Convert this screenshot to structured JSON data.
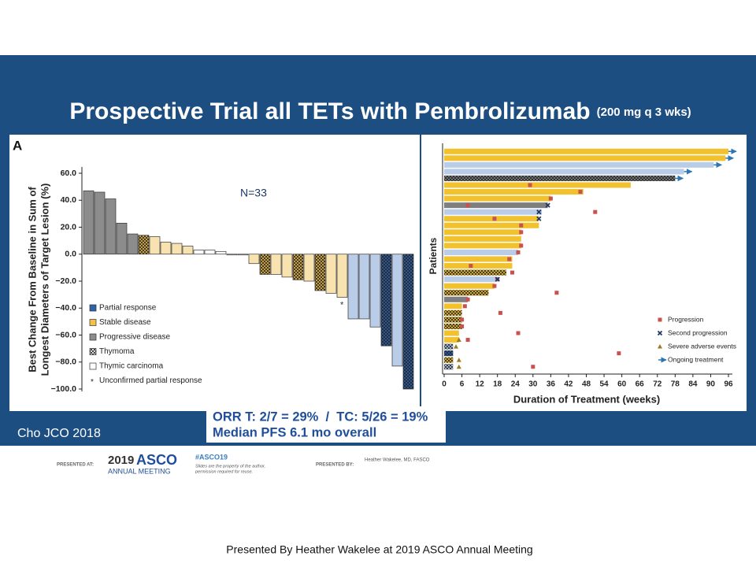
{
  "slide": {
    "title": "Prospective Trial all TETs with Pembrolizumab",
    "title_note": "(200 mg q 3 wks)",
    "panel_label": "A",
    "citation": "Cho JCO 2018",
    "summary": [
      "ORR T: 2/7 = 29%  /  TC: 5/26 = 19%",
      "Median PFS 6.1 mo overall"
    ],
    "footer": {
      "presented_at": "PRESENTED AT:",
      "meeting_year": "2019",
      "meeting_name": "ASCO",
      "meeting_sub": "ANNUAL MEETING",
      "hashtag": "#ASCO19",
      "notice": [
        "Slides are the property of the author,",
        "permission required for reuse."
      ],
      "presented_by": "PRESENTED BY:",
      "presenter": "Heather Wakelee, MD, FASCO"
    },
    "caption": "Presented By Heather Wakelee at 2019 ASCO Annual Meeting"
  },
  "chart_data": [
    {
      "type": "waterfall",
      "ylabel": [
        "Best Change From Baseline in Sum of",
        "Longest Diameters of Target Lesion (%)"
      ],
      "annotations": [
        "N=33",
        "*"
      ],
      "values": [
        47,
        46,
        41,
        23,
        15,
        14,
        13,
        9,
        8,
        6,
        3,
        3,
        2,
        0,
        0,
        -7,
        -15,
        -15,
        -17,
        -19,
        -20,
        -27,
        -29,
        -32,
        -48,
        -48,
        -54,
        -68,
        -83,
        -100
      ],
      "colors": [
        "#8c8c8c",
        "#8c8c8c",
        "#8c8c8c",
        "#8c8c8c",
        "#8c8c8c",
        "#e9b94a",
        "#f8e3b0",
        "#f8e3b0",
        "#f8e3b0",
        "#f8e3b0",
        "#ffffff",
        "#ffffff",
        "#ffffff",
        "#ffffff",
        "#ffffff",
        "#f8e3b0",
        "#e9b94a",
        "#f8e3b0",
        "#f8e3b0",
        "#e9b94a",
        "#f8e3b0",
        "#e9b94a",
        "#f8e3b0",
        "#f8e3b0",
        "#b9cde8",
        "#b9cde8",
        "#b9cde8",
        "#2f62a8",
        "#b9cde8",
        "#2f62a8"
      ],
      "hatched": [
        false,
        false,
        false,
        false,
        false,
        true,
        false,
        false,
        false,
        false,
        false,
        false,
        false,
        false,
        false,
        false,
        true,
        false,
        false,
        true,
        false,
        true,
        false,
        false,
        false,
        false,
        false,
        true,
        false,
        true
      ],
      "ylim": [
        -100,
        60
      ],
      "yticks": [
        {
          "value": 60,
          "label": "60.0"
        },
        {
          "value": 40,
          "label": "40.0"
        },
        {
          "value": 20,
          "label": "20.0"
        },
        {
          "value": 0,
          "label": "0.0"
        },
        {
          "value": -20,
          "label": "−20.0"
        },
        {
          "value": -40,
          "label": "−40.0"
        },
        {
          "value": -60,
          "label": "−60.0"
        },
        {
          "value": -80,
          "label": "−80.0"
        },
        {
          "value": -100,
          "label": "−100.0"
        }
      ],
      "legend": [
        {
          "label": "Partial response",
          "color": "#2f62a8"
        },
        {
          "label": "Stable disease",
          "color": "#f3c14a"
        },
        {
          "label": "Progressive disease",
          "color": "#8c8c8c"
        },
        {
          "label": "Thymoma",
          "color": "#ffffff",
          "hatched": true
        },
        {
          "label": "Thymic carcinoma",
          "color": "#ffffff"
        },
        {
          "label": "Unconfirmed partial response",
          "symbol": "*"
        }
      ]
    },
    {
      "type": "swimmer",
      "ylabel": "Patients",
      "xlabel": "Duration of Treatment (weeks)",
      "values": [
        96,
        95,
        91,
        81,
        78,
        63,
        47,
        36,
        35,
        33,
        32,
        32,
        26,
        26,
        26,
        25,
        23,
        23,
        21,
        18,
        17,
        15,
        8,
        6,
        6,
        6,
        6,
        5,
        5,
        3,
        3,
        3,
        3
      ],
      "colors": [
        "#f2c12e",
        "#f2c12e",
        "#b9cde8",
        "#b9cde8",
        "#7f7f7f",
        "#f2c12e",
        "#f2c12e",
        "#f2c12e",
        "#7f7f7f",
        "#b9cde8",
        "#f2c12e",
        "#f2c12e",
        "#f2c12e",
        "#f2c12e",
        "#f2c12e",
        "#b9cde8",
        "#f2c12e",
        "#f2c12e",
        "#f2c12e",
        "#b9cde8",
        "#f2c12e",
        "#f2c12e",
        "#7f7f7f",
        "#f2c12e",
        "#f2c12e",
        "#f2c12e",
        "#f2c12e",
        "#f2c12e",
        "#f2c12e",
        "#b9cde8",
        "#2f62a8",
        "#f2c12e",
        "#b9cde8"
      ],
      "hatched": [
        false,
        false,
        false,
        false,
        true,
        false,
        false,
        false,
        false,
        false,
        false,
        false,
        false,
        false,
        false,
        false,
        false,
        false,
        true,
        false,
        false,
        true,
        false,
        false,
        true,
        true,
        true,
        false,
        false,
        true,
        true,
        true,
        true
      ],
      "progression": [
        null,
        null,
        null,
        null,
        null,
        29,
        46,
        36,
        8,
        51,
        17,
        26,
        26,
        null,
        26,
        25,
        22,
        9,
        23,
        18,
        17,
        38,
        8,
        7,
        19,
        6,
        6,
        25,
        8,
        null,
        59,
        null,
        30
      ],
      "second_progression": [
        null,
        null,
        null,
        null,
        null,
        null,
        null,
        null,
        35,
        32,
        32,
        null,
        null,
        null,
        null,
        null,
        null,
        null,
        null,
        18,
        null,
        null,
        null,
        null,
        null,
        null,
        null,
        null,
        null,
        null,
        null,
        null,
        null
      ],
      "severe_adverse_events": [
        null,
        null,
        null,
        null,
        null,
        null,
        null,
        null,
        null,
        null,
        null,
        null,
        null,
        null,
        null,
        null,
        null,
        null,
        null,
        null,
        null,
        null,
        null,
        null,
        null,
        null,
        null,
        null,
        5,
        4,
        null,
        5,
        5
      ],
      "ongoing": [
        true,
        true,
        true,
        true,
        true,
        false,
        false,
        false,
        false,
        false,
        false,
        false,
        false,
        false,
        false,
        false,
        false,
        false,
        false,
        false,
        false,
        false,
        false,
        false,
        false,
        false,
        false,
        false,
        false,
        false,
        false,
        false,
        false
      ],
      "xlim": [
        0,
        96
      ],
      "xticks": [
        0,
        6,
        12,
        18,
        24,
        30,
        36,
        42,
        48,
        54,
        60,
        66,
        72,
        78,
        84,
        90,
        96
      ],
      "legend": [
        {
          "label": "Progression",
          "symbol": "square",
          "color": "#c9524f"
        },
        {
          "label": "Second progression",
          "symbol": "cross",
          "color": "#1f3864"
        },
        {
          "label": "Severe adverse events",
          "symbol": "triangle",
          "color": "#9a7b1f"
        },
        {
          "label": "Ongoing treatment",
          "symbol": "arrow",
          "color": "#2e75b6"
        }
      ]
    }
  ]
}
